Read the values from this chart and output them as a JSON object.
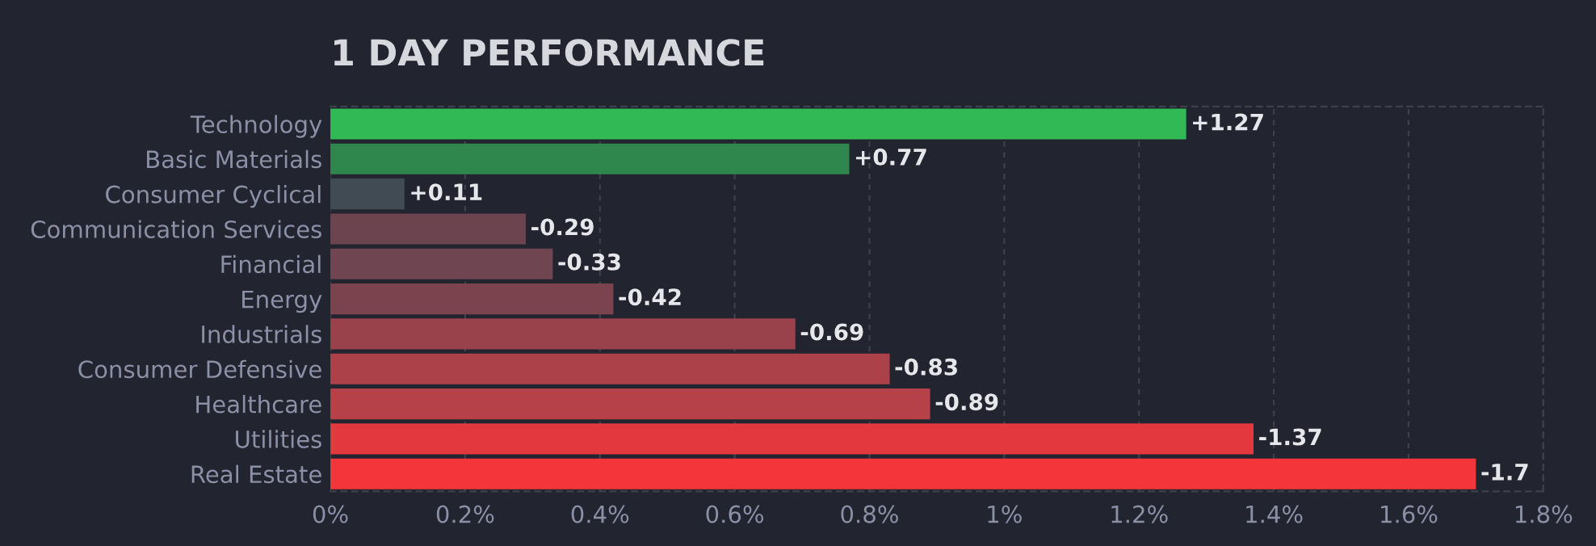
{
  "chart_data": {
    "type": "bar",
    "orientation": "horizontal",
    "title": "1 DAY PERFORMANCE",
    "categories": [
      "Technology",
      "Basic Materials",
      "Consumer Cyclical",
      "Communication Services",
      "Financial",
      "Energy",
      "Industrials",
      "Consumer Defensive",
      "Healthcare",
      "Utilities",
      "Real Estate"
    ],
    "values": [
      1.27,
      0.77,
      0.11,
      -0.29,
      -0.33,
      -0.42,
      -0.69,
      -0.83,
      -0.89,
      -1.37,
      -1.7
    ],
    "base": [
      0,
      0,
      0,
      0.29,
      0.33,
      0.42,
      0.69,
      0.83,
      0.89,
      1.37,
      1.7
    ],
    "value_labels": [
      "+1.27",
      "+0.77",
      "+0.11",
      "-0.29",
      "-0.33",
      "-0.42",
      "-0.69",
      "-0.83",
      "-0.89",
      "-1.37",
      "-1.7"
    ],
    "colors": [
      "#30b955",
      "#30874d",
      "#404b54",
      "#6c4450",
      "#6e4550",
      "#7b434e",
      "#9a424b",
      "#ad4149",
      "#b74148",
      "#e3393e",
      "#f4363b"
    ],
    "xlim": [
      0,
      1.8
    ],
    "xticks": [
      {
        "value": 0,
        "label": "0%"
      },
      {
        "value": 0.2,
        "label": "0.2%"
      },
      {
        "value": 0.4,
        "label": "0.4%"
      },
      {
        "value": 0.6,
        "label": "0.6%"
      },
      {
        "value": 0.8,
        "label": "0.8%"
      },
      {
        "value": 1,
        "label": "1%"
      },
      {
        "value": 1.2,
        "label": "1.2%"
      },
      {
        "value": 1.4,
        "label": "1.4%"
      },
      {
        "value": 1.6,
        "label": "1.6%"
      },
      {
        "value": 1.8,
        "label": "1.8%"
      }
    ],
    "grid": "x"
  }
}
